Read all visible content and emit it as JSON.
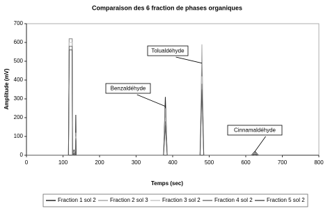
{
  "chart_data": {
    "type": "line",
    "title": "Comparaison des 6 fraction de phases organiques",
    "x_label": "Temps (sec)",
    "y_label": "Amplitude (mV)",
    "xlim": [
      0,
      800
    ],
    "xticks": [
      0,
      100,
      200,
      300,
      400,
      500,
      600,
      700,
      800
    ],
    "ylim": [
      0,
      700
    ],
    "yticks": [
      0,
      100,
      200,
      300,
      400,
      500,
      600,
      700
    ],
    "x": [
      0,
      100,
      115,
      117,
      118,
      125,
      126,
      128,
      130,
      132,
      134,
      135,
      136,
      140,
      200,
      375,
      380,
      385,
      475,
      480,
      485,
      615,
      625,
      635,
      700
    ],
    "series": [
      {
        "name": "Fraction 1 sol 2",
        "color": "#222222",
        "values": [
          0,
          0,
          0,
          620,
          620,
          620,
          0,
          0,
          30,
          0,
          0,
          215,
          0,
          0,
          0,
          0,
          310,
          0,
          0,
          490,
          0,
          0,
          20,
          0,
          0
        ]
      },
      {
        "name": "Fraction 2 sol 3",
        "color": "#aaaaaa",
        "values": [
          0,
          0,
          0,
          620,
          620,
          620,
          0,
          0,
          20,
          0,
          0,
          120,
          0,
          0,
          0,
          0,
          250,
          0,
          0,
          590,
          0,
          0,
          15,
          0,
          0
        ]
      },
      {
        "name": "Fraction 3 sol 2",
        "color": "#c8c8c8",
        "values": [
          0,
          0,
          0,
          600,
          600,
          600,
          0,
          0,
          15,
          0,
          0,
          100,
          0,
          0,
          0,
          0,
          200,
          0,
          0,
          420,
          0,
          0,
          10,
          0,
          0
        ]
      },
      {
        "name": "Fraction 4 sol 2",
        "color": "#777777",
        "values": [
          0,
          0,
          0,
          580,
          580,
          580,
          0,
          0,
          10,
          0,
          0,
          90,
          0,
          0,
          0,
          0,
          180,
          0,
          0,
          380,
          0,
          0,
          8,
          0,
          0
        ]
      },
      {
        "name": "Fraction 5 sol 2",
        "color": "#555555",
        "values": [
          0,
          0,
          0,
          560,
          560,
          560,
          0,
          0,
          10,
          0,
          0,
          80,
          0,
          0,
          0,
          0,
          160,
          0,
          0,
          350,
          0,
          0,
          6,
          0,
          0
        ]
      }
    ],
    "annotations": [
      {
        "text": "Tolualdéhyde",
        "x": 480,
        "y": 490
      },
      {
        "text": "Benzaldéhyde",
        "x": 380,
        "y": 260
      },
      {
        "text": "Cinnamaldéhyde",
        "x": 625,
        "y": 20
      }
    ],
    "grid": false,
    "legend": "bottom"
  }
}
